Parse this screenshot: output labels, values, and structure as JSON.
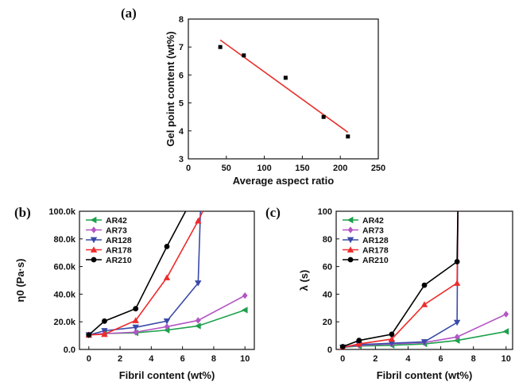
{
  "chart_data": [
    {
      "panel": "(a)",
      "type": "scatter",
      "xlabel": "Average aspect ratio",
      "ylabel": "Gel point content (wt%)",
      "xlim": [
        0,
        250
      ],
      "ylim": [
        3,
        8
      ],
      "xticks": [
        "0",
        "50",
        "100",
        "150",
        "200",
        "250"
      ],
      "yticks": [
        "3",
        "4",
        "5",
        "6",
        "7",
        "8"
      ],
      "points": [
        {
          "x": 42,
          "y": 7.0
        },
        {
          "x": 73,
          "y": 6.7
        },
        {
          "x": 128,
          "y": 5.9
        },
        {
          "x": 178,
          "y": 4.5
        },
        {
          "x": 210,
          "y": 3.8
        }
      ],
      "fit_line": {
        "x": [
          42,
          210
        ],
        "y": [
          7.25,
          3.95
        ]
      },
      "colors": {
        "points": "#000000",
        "fit": "#e8302a"
      }
    },
    {
      "panel": "(b)",
      "type": "line",
      "xlabel": "Fibril content (wt%)",
      "ylabel": "η0 (Pa·s)",
      "xlim": [
        -0.6,
        10.6
      ],
      "ylim": [
        0,
        100000
      ],
      "xticks": [
        "0",
        "2",
        "4",
        "6",
        "8",
        "10"
      ],
      "yticks": [
        "0.0",
        "20.0k",
        "40.0k",
        "60.0k",
        "80.0k",
        "100.0k"
      ],
      "legend_position": "top-left",
      "series": [
        {
          "name": "AR42",
          "color": "#1ba04a",
          "marker": "triangle-left",
          "x": [
            0,
            1,
            3,
            5,
            7,
            10
          ],
          "y": [
            10500,
            11500,
            12000,
            14000,
            17000,
            28500
          ]
        },
        {
          "name": "AR73",
          "color": "#b455c4",
          "marker": "diamond",
          "x": [
            0,
            1,
            3,
            5,
            7,
            10
          ],
          "y": [
            10500,
            11500,
            12500,
            16500,
            21000,
            39000
          ]
        },
        {
          "name": "AR128",
          "color": "#3b4aa8",
          "marker": "triangle-down",
          "x": [
            0,
            1,
            3,
            5,
            7,
            7.15
          ],
          "y": [
            10500,
            13500,
            16000,
            20500,
            48000,
            100000
          ]
        },
        {
          "name": "AR178",
          "color": "#ee2c2c",
          "marker": "triangle-up",
          "x": [
            0,
            1,
            3,
            5,
            7,
            7.3
          ],
          "y": [
            10500,
            11000,
            21000,
            52000,
            93000,
            100000
          ]
        },
        {
          "name": "AR210",
          "color": "#000000",
          "marker": "circle",
          "x": [
            0,
            1,
            3,
            5,
            6.2
          ],
          "y": [
            10500,
            20500,
            29500,
            74500,
            100000
          ]
        }
      ]
    },
    {
      "panel": "(c)",
      "type": "line",
      "xlabel": "Fibril content (wt%)",
      "ylabel": "λ (s)",
      "xlim": [
        -0.4,
        10.4
      ],
      "ylim": [
        0,
        100
      ],
      "xticks": [
        "0",
        "2",
        "4",
        "6",
        "8",
        "10"
      ],
      "yticks": [
        "0",
        "20",
        "40",
        "60",
        "80",
        "100"
      ],
      "legend_position": "top-left",
      "series": [
        {
          "name": "AR42",
          "color": "#1ba04a",
          "marker": "triangle-left",
          "x": [
            0,
            1,
            3,
            5,
            7,
            10
          ],
          "y": [
            1.5,
            2.5,
            3,
            4,
            6.5,
            13
          ]
        },
        {
          "name": "AR73",
          "color": "#b455c4",
          "marker": "diamond",
          "x": [
            0,
            1,
            3,
            5,
            7,
            10
          ],
          "y": [
            1.5,
            3,
            4,
            5,
            9,
            25.5
          ]
        },
        {
          "name": "AR128",
          "color": "#3b4aa8",
          "marker": "triangle-down",
          "x": [
            0,
            1,
            3,
            5,
            7,
            7.05
          ],
          "y": [
            1.5,
            3.5,
            4.5,
            5.5,
            19.5,
            100
          ]
        },
        {
          "name": "AR178",
          "color": "#ee2c2c",
          "marker": "triangle-up",
          "x": [
            0,
            1,
            3,
            5,
            7,
            7.05
          ],
          "y": [
            1.5,
            4,
            7.5,
            32.5,
            48,
            100
          ]
        },
        {
          "name": "AR210",
          "color": "#000000",
          "marker": "circle",
          "x": [
            0,
            1,
            3,
            5,
            7,
            7.05
          ],
          "y": [
            2,
            6.5,
            11,
            46.5,
            63.5,
            100
          ]
        }
      ]
    }
  ]
}
